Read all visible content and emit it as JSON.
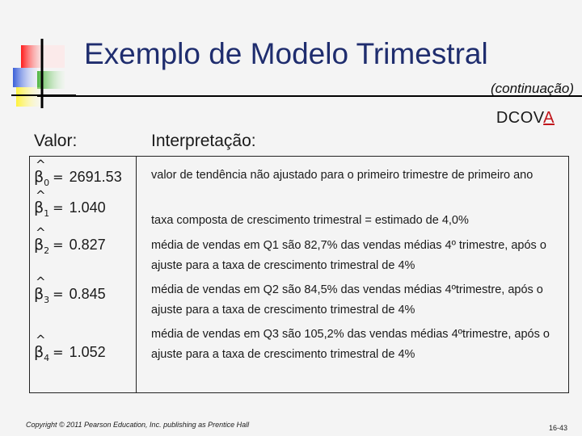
{
  "header": {
    "title": "Exemplo de Modelo Trimestral",
    "subtitle": "(continuação)",
    "dcova_prefix": "DCOV",
    "dcova_highlight": "A"
  },
  "columns": {
    "value": "Valor:",
    "interpretation": "Interpretação:"
  },
  "rows": [
    {
      "symbol": "β",
      "subscript": "0",
      "equals": "=",
      "value": "2691.53",
      "interpretation": "valor de tendência não ajustado para o primeiro trimestre de primeiro ano"
    },
    {
      "symbol": "β",
      "subscript": "1",
      "equals": "=",
      "value": "1.040",
      "interpretation": "taxa composta de crescimento trimestral = estimado de 4,0%"
    },
    {
      "symbol": "β",
      "subscript": "2",
      "equals": "=",
      "value": "0.827",
      "interpretation": "média de vendas em Q1 são 82,7% das vendas médias 4º trimestre, após o ajuste para a taxa de crescimento trimestral de 4%"
    },
    {
      "symbol": "β",
      "subscript": "3",
      "equals": "=",
      "value": "0.845",
      "interpretation": "média de vendas em Q2 são 84,5% das vendas médias 4ºtrimestre, após o ajuste para a taxa de crescimento trimestral de 4%"
    },
    {
      "symbol": "β",
      "subscript": "4",
      "equals": "=",
      "value": "1.052",
      "interpretation": "média de vendas em Q3 são 105,2% das vendas médias 4ºtrimestre, após o ajuste para a taxa de crescimento trimestral de 4%"
    }
  ],
  "footer": {
    "copyright": "Copyright © 2011 Pearson Education, Inc. publishing as Prentice Hall",
    "page": "16-43"
  },
  "colors": {
    "title": "#1f2d6e",
    "accent_red": "#e8141b",
    "accent_yellow": "#f5ef2a",
    "accent_blue": "#4a6fd8",
    "accent_green": "#58b84a"
  },
  "icons": {
    "logo": "color-squares-logo",
    "beta_hat": "hat-symbol"
  }
}
